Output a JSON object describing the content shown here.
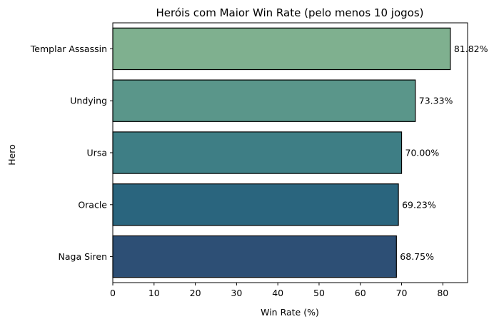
{
  "chart_data": {
    "type": "bar",
    "orientation": "horizontal",
    "title": "Heróis com Maior Win Rate (pelo menos 10 jogos)",
    "xlabel": "Win Rate (%)",
    "ylabel": "Hero",
    "xlim": [
      0,
      86
    ],
    "xticks": [
      0,
      10,
      20,
      30,
      40,
      50,
      60,
      70,
      80
    ],
    "grid": false,
    "categories": [
      "Templar Assassin",
      "Undying",
      "Ursa",
      "Oracle",
      "Naga Siren"
    ],
    "values": [
      81.82,
      73.33,
      70.0,
      69.23,
      68.75
    ],
    "data_labels": [
      "81.82%",
      "73.33%",
      "70.00%",
      "69.23%",
      "68.75%"
    ],
    "colors": [
      "#7fb08f",
      "#5a968a",
      "#3e7e85",
      "#2a657e",
      "#2d4f75"
    ]
  }
}
